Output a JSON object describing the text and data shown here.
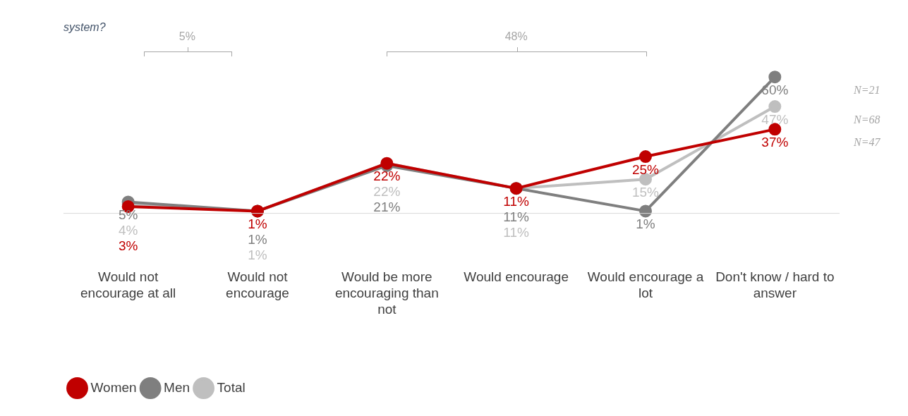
{
  "chart_data": {
    "type": "line",
    "title": "system?",
    "marker": "circle",
    "legend": "bottom left",
    "tick_labels": "x",
    "categories": [
      "Would not encourage at all",
      "Would not encourage",
      "Would be more encouraging than not",
      "Would encourage",
      "Would encourage a lot",
      "Don't know / hard to answer"
    ],
    "series": [
      {
        "name": "Women",
        "color": "#c00000",
        "values": [
          3,
          1,
          22,
          11,
          25,
          37
        ],
        "value_labels": [
          "3%",
          "1%",
          "22%",
          "11%",
          "25%",
          "37%"
        ]
      },
      {
        "name": "Men",
        "color": "#7f7f7f",
        "values": [
          5,
          1,
          21,
          11,
          1,
          60
        ],
        "value_labels": [
          "5%",
          "1%",
          "21%",
          "11%",
          "1%",
          "60%"
        ]
      },
      {
        "name": "Total",
        "color": "#bfbfbf",
        "values": [
          4,
          1,
          22,
          11,
          15,
          47
        ],
        "value_labels": [
          "4%",
          "1%",
          "22%",
          "11%",
          "15%",
          "47%"
        ]
      }
    ],
    "annotations": [
      "5%",
      "48%",
      "N=47",
      "N=21",
      "N=68"
    ]
  }
}
